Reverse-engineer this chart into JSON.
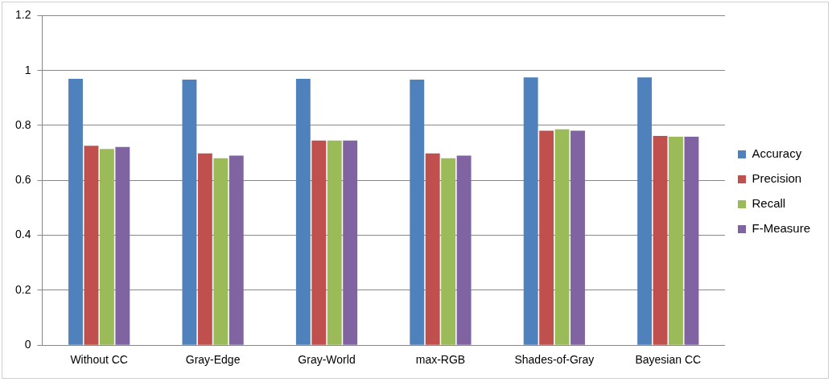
{
  "chart_data": {
    "type": "bar",
    "categories": [
      "Without CC",
      "Gray-Edge",
      "Gray-World",
      "max-RGB",
      "Shades-of-Gray",
      "Bayesian CC"
    ],
    "series": [
      {
        "name": "Accuracy",
        "color": "#4f81bd",
        "values": [
          0.97,
          0.967,
          0.97,
          0.967,
          0.975,
          0.975
        ]
      },
      {
        "name": "Precision",
        "color": "#c0504d",
        "values": [
          0.726,
          0.698,
          0.745,
          0.698,
          0.781,
          0.762
        ]
      },
      {
        "name": "Recall",
        "color": "#9bbb59",
        "values": [
          0.714,
          0.681,
          0.745,
          0.681,
          0.786,
          0.759
        ]
      },
      {
        "name": "F-Measure",
        "color": "#8064a2",
        "values": [
          0.722,
          0.69,
          0.745,
          0.69,
          0.781,
          0.759
        ]
      }
    ],
    "ylim": [
      0,
      1.2
    ],
    "yticks": [
      0,
      {
        "value": 0.2,
        "label": "0.2"
      },
      {
        "value": 0.4,
        "label": "0.4"
      },
      {
        "value": 0.6,
        "label": "0.6"
      },
      {
        "value": 0.8,
        "label": "0.8"
      },
      1,
      {
        "value": 1.2,
        "label": "1.2"
      }
    ],
    "grid": "y",
    "legend": "right"
  }
}
